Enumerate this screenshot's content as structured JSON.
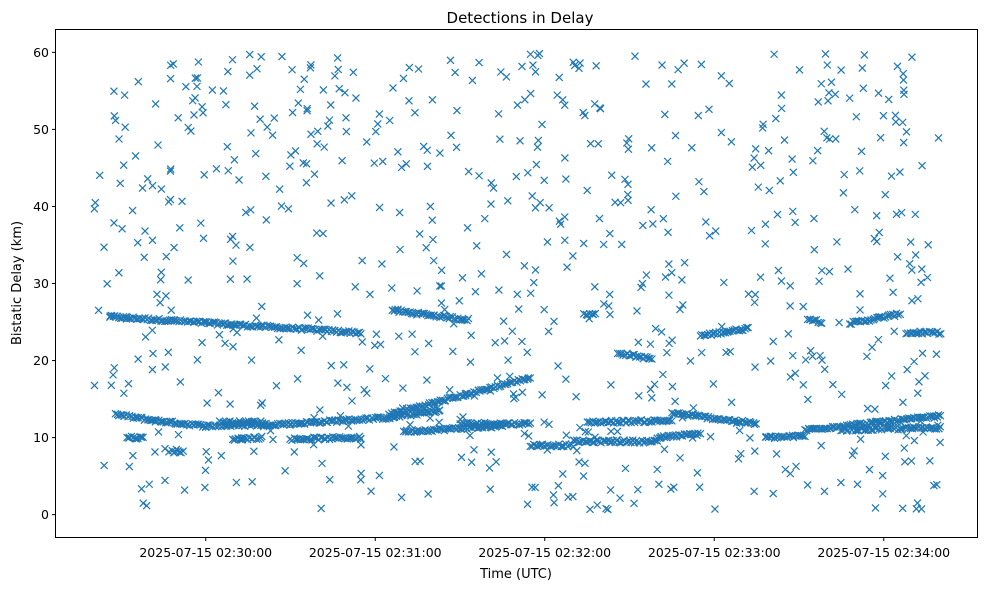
{
  "chart_data": {
    "type": "scatter",
    "title": "Detections in Delay",
    "xlabel": "Time (UTC)",
    "ylabel": "Bistatic Delay (km)",
    "x_tick_labels": [
      "2025-07-15 02:30:00",
      "2025-07-15 02:31:00",
      "2025-07-15 02:32:00",
      "2025-07-15 02:33:00",
      "2025-07-15 02:34:00"
    ],
    "y_tick_labels": [
      "0",
      "10",
      "20",
      "30",
      "40",
      "50",
      "60"
    ],
    "xlim": [
      "2025-07-15 02:29:07",
      "2025-07-15 02:34:33"
    ],
    "ylim": [
      -2.9,
      62.9
    ],
    "x_range": [
      "2025-07-15 02:29:20",
      "2025-07-15 02:34:20"
    ],
    "marker": "x",
    "color": "#1f77b4",
    "grid": false,
    "tracks": [
      {
        "from": [
          "2025-07-15 02:29:26",
          25.7
        ],
        "to": [
          "2025-07-15 02:30:55",
          23.6
        ]
      },
      {
        "from": [
          "2025-07-15 02:31:06",
          26.5
        ],
        "to": [
          "2025-07-15 02:31:33",
          25.3
        ]
      },
      {
        "from": [
          "2025-07-15 02:32:14",
          26.0
        ],
        "to": [
          "2025-07-15 02:32:18",
          26.0
        ]
      },
      {
        "from": [
          "2025-07-15 02:32:26",
          21.0
        ],
        "to": [
          "2025-07-15 02:32:38",
          20.2
        ]
      },
      {
        "from": [
          "2025-07-15 02:32:55",
          23.2
        ],
        "to": [
          "2025-07-15 02:33:12",
          24.2
        ]
      },
      {
        "from": [
          "2025-07-15 02:33:33",
          25.5
        ],
        "to": [
          "2025-07-15 02:33:38",
          25.0
        ]
      },
      {
        "from": [
          "2025-07-15 02:33:48",
          24.8
        ],
        "to": [
          "2025-07-15 02:34:05",
          26.0
        ]
      },
      {
        "from": [
          "2025-07-15 02:34:08",
          23.6
        ],
        "to": [
          "2025-07-15 02:34:20",
          23.6
        ]
      },
      {
        "from": [
          "2025-07-15 02:29:28",
          13.0
        ],
        "to": [
          "2025-07-15 02:29:42",
          12.2
        ]
      },
      {
        "from": [
          "2025-07-15 02:29:42",
          12.2
        ],
        "to": [
          "2025-07-15 02:30:00",
          11.5
        ]
      },
      {
        "from": [
          "2025-07-15 02:30:00",
          11.5
        ],
        "to": [
          "2025-07-15 02:30:30",
          11.8
        ]
      },
      {
        "from": [
          "2025-07-15 02:30:30",
          11.8
        ],
        "to": [
          "2025-07-15 02:31:05",
          12.6
        ]
      },
      {
        "from": [
          "2025-07-15 02:31:05",
          12.6
        ],
        "to": [
          "2025-07-15 02:31:23",
          13.5
        ]
      },
      {
        "from": [
          "2025-07-15 02:31:05",
          13.0
        ],
        "to": [
          "2025-07-15 02:31:55",
          17.8
        ]
      },
      {
        "from": [
          "2025-07-15 02:29:32",
          10.0
        ],
        "to": [
          "2025-07-15 02:29:38",
          10.0
        ]
      },
      {
        "from": [
          "2025-07-15 02:29:48",
          8.2
        ],
        "to": [
          "2025-07-15 02:29:52",
          8.2
        ]
      },
      {
        "from": [
          "2025-07-15 02:30:05",
          12.0
        ],
        "to": [
          "2025-07-15 02:30:20",
          12.0
        ]
      },
      {
        "from": [
          "2025-07-15 02:30:10",
          9.8
        ],
        "to": [
          "2025-07-15 02:30:20",
          10.0
        ]
      },
      {
        "from": [
          "2025-07-15 02:30:30",
          9.8
        ],
        "to": [
          "2025-07-15 02:30:55",
          10.0
        ]
      },
      {
        "from": [
          "2025-07-15 02:31:10",
          10.8
        ],
        "to": [
          "2025-07-15 02:31:45",
          11.5
        ]
      },
      {
        "from": [
          "2025-07-15 02:31:30",
          11.8
        ],
        "to": [
          "2025-07-15 02:31:55",
          11.8
        ]
      },
      {
        "from": [
          "2025-07-15 02:31:55",
          9.0
        ],
        "to": [
          "2025-07-15 02:32:10",
          9.0
        ]
      },
      {
        "from": [
          "2025-07-15 02:32:10",
          9.5
        ],
        "to": [
          "2025-07-15 02:32:40",
          9.5
        ]
      },
      {
        "from": [
          "2025-07-15 02:32:15",
          12.0
        ],
        "to": [
          "2025-07-15 02:32:45",
          12.2
        ]
      },
      {
        "from": [
          "2025-07-15 02:32:40",
          10.0
        ],
        "to": [
          "2025-07-15 02:32:55",
          10.5
        ]
      },
      {
        "from": [
          "2025-07-15 02:32:45",
          13.2
        ],
        "to": [
          "2025-07-15 02:33:15",
          11.8
        ]
      },
      {
        "from": [
          "2025-07-15 02:33:18",
          10.0
        ],
        "to": [
          "2025-07-15 02:33:32",
          10.2
        ]
      },
      {
        "from": [
          "2025-07-15 02:33:32",
          11.0
        ],
        "to": [
          "2025-07-15 02:34:20",
          12.8
        ]
      },
      {
        "from": [
          "2025-07-15 02:33:45",
          11.0
        ],
        "to": [
          "2025-07-15 02:34:20",
          11.3
        ]
      }
    ],
    "scatter_count": 740,
    "scatter_ylim": [
      0.5,
      60
    ]
  }
}
